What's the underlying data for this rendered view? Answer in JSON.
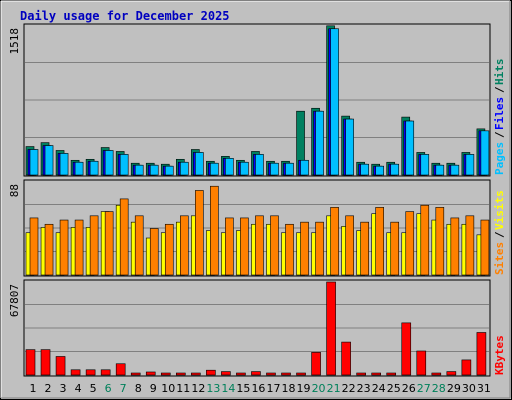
{
  "page": {
    "title": "Daily usage for December 2025"
  },
  "chart_data": [
    {
      "type": "bar",
      "panel": "hits-files-pages",
      "ytick_label": "1518",
      "ylim": [
        0,
        1518
      ],
      "categories": [
        "1",
        "2",
        "3",
        "4",
        "5",
        "6",
        "7",
        "8",
        "9",
        "10",
        "11",
        "12",
        "13",
        "14",
        "15",
        "16",
        "17",
        "18",
        "19",
        "20",
        "21",
        "22",
        "23",
        "24",
        "25",
        "26",
        "27",
        "28",
        "29",
        "30",
        "31"
      ],
      "weekend_days": [
        "6",
        "7",
        "13",
        "14",
        "20",
        "21",
        "27",
        "28"
      ],
      "series": [
        {
          "name": "Hits",
          "color": "#008060",
          "values": [
            290,
            330,
            250,
            150,
            160,
            280,
            240,
            120,
            120,
            110,
            160,
            260,
            140,
            190,
            150,
            240,
            140,
            140,
            650,
            680,
            1520,
            600,
            130,
            110,
            130,
            590,
            230,
            120,
            120,
            230,
            470
          ]
        },
        {
          "name": "Files",
          "color": "#0000ff",
          "values": [
            260,
            300,
            220,
            130,
            140,
            250,
            210,
            100,
            100,
            90,
            130,
            230,
            120,
            170,
            130,
            210,
            120,
            120,
            150,
            650,
            1490,
            570,
            110,
            90,
            110,
            550,
            210,
            100,
            100,
            210,
            450
          ]
        },
        {
          "name": "Pages",
          "color": "#00c0ff",
          "values": [
            260,
            300,
            220,
            130,
            140,
            250,
            210,
            100,
            100,
            90,
            130,
            230,
            120,
            170,
            130,
            210,
            120,
            120,
            150,
            650,
            1490,
            570,
            110,
            90,
            110,
            550,
            210,
            100,
            100,
            210,
            450
          ]
        }
      ],
      "side_labels": [
        "Pages",
        "Files",
        "Hits"
      ]
    },
    {
      "type": "bar",
      "panel": "visits-sites",
      "ytick_label": "88",
      "ylim": [
        0,
        88
      ],
      "categories": [
        "1",
        "2",
        "3",
        "4",
        "5",
        "6",
        "7",
        "8",
        "9",
        "10",
        "11",
        "12",
        "13",
        "14",
        "15",
        "16",
        "17",
        "18",
        "19",
        "20",
        "21",
        "22",
        "23",
        "24",
        "25",
        "26",
        "27",
        "28",
        "29",
        "30",
        "31"
      ],
      "series": [
        {
          "name": "Visits",
          "color": "#ffff00",
          "values": [
            40,
            45,
            40,
            45,
            45,
            60,
            66,
            50,
            35,
            40,
            50,
            56,
            42,
            40,
            42,
            48,
            48,
            40,
            40,
            40,
            56,
            46,
            42,
            58,
            40,
            40,
            58,
            52,
            48,
            48,
            38
          ]
        },
        {
          "name": "Sites",
          "color": "#ff8000",
          "values": [
            54,
            48,
            52,
            52,
            56,
            60,
            72,
            56,
            44,
            48,
            56,
            80,
            84,
            54,
            54,
            56,
            56,
            48,
            50,
            50,
            64,
            56,
            50,
            64,
            50,
            60,
            66,
            64,
            54,
            56,
            52
          ]
        }
      ],
      "side_labels": [
        "Sites",
        "Visits"
      ]
    },
    {
      "type": "bar",
      "panel": "kbytes",
      "ytick_label": "67807",
      "ylim": [
        0,
        67807
      ],
      "categories": [
        "1",
        "2",
        "3",
        "4",
        "5",
        "6",
        "7",
        "8",
        "9",
        "10",
        "11",
        "12",
        "13",
        "14",
        "15",
        "16",
        "17",
        "18",
        "19",
        "20",
        "21",
        "22",
        "23",
        "24",
        "25",
        "26",
        "27",
        "28",
        "29",
        "30",
        "31"
      ],
      "series": [
        {
          "name": "KBytes",
          "color": "#ff0000",
          "values": [
            18500,
            18500,
            13500,
            3800,
            3800,
            3800,
            8200,
            1000,
            2200,
            1000,
            1000,
            1000,
            3500,
            2500,
            1000,
            2500,
            1000,
            1000,
            1000,
            16500,
            67807,
            24000,
            1000,
            1000,
            1000,
            38000,
            17500,
            1000,
            2500,
            11000,
            31000
          ]
        }
      ],
      "side_labels": [
        "KBytes"
      ]
    }
  ]
}
